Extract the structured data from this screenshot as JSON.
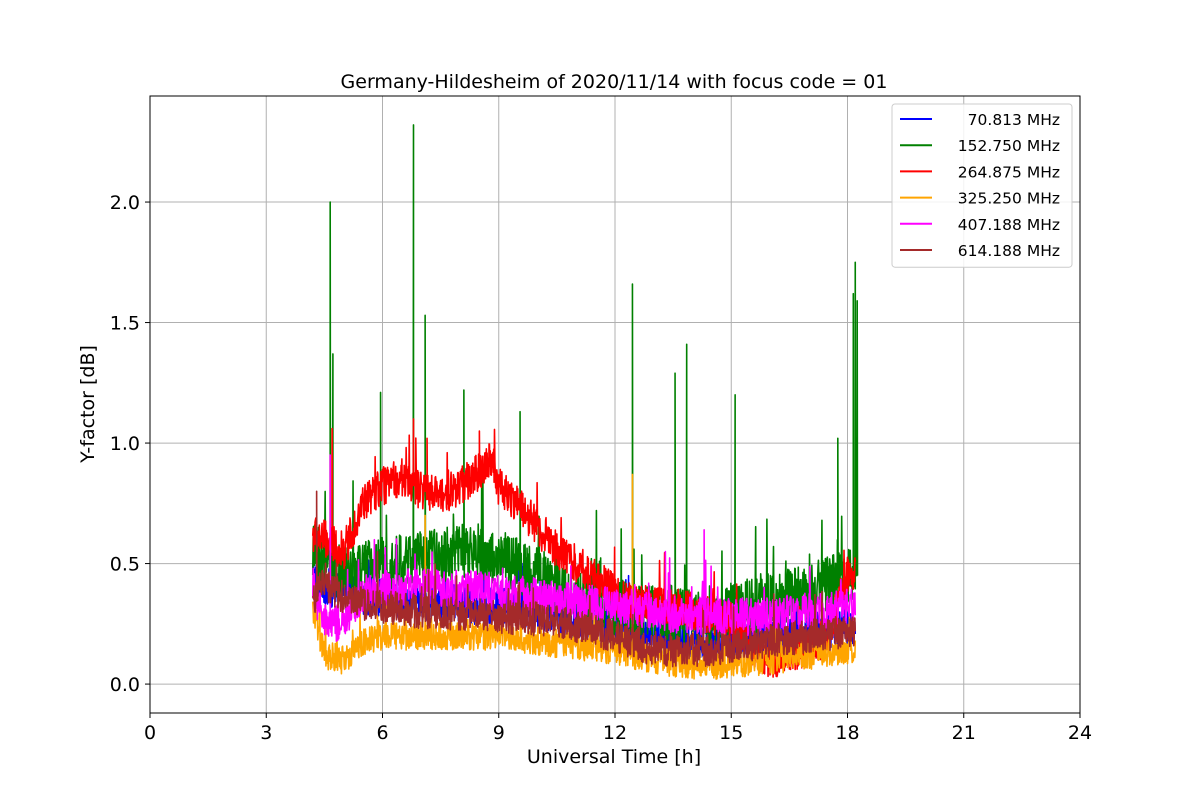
{
  "chart_data": {
    "type": "line",
    "title": "Germany-Hildesheim of 2020/11/14 with focus code = 01",
    "xlabel": "Universal Time [h]",
    "ylabel": "Y-factor [dB]",
    "xlim": [
      0,
      24
    ],
    "ylim": [
      -0.12,
      2.44
    ],
    "xticks": [
      0,
      3,
      6,
      9,
      12,
      15,
      18,
      21,
      24
    ],
    "xtick_labels": [
      "0",
      "3",
      "6",
      "9",
      "12",
      "15",
      "18",
      "21",
      "24"
    ],
    "yticks": [
      0.0,
      0.5,
      1.0,
      1.5,
      2.0
    ],
    "ytick_labels": [
      "0.0",
      "0.5",
      "1.0",
      "1.5",
      "2.0"
    ],
    "grid": true,
    "legend_position": "top-right",
    "series": [
      {
        "name": "70.813 MHz",
        "color": "#0000ff",
        "x": [
          4.2,
          4.6,
          5.0,
          6.0,
          7.0,
          8.0,
          9.0,
          10.0,
          11.0,
          12.0,
          13.0,
          14.0,
          15.0,
          16.0,
          17.0,
          18.2
        ],
        "y": [
          0.45,
          0.4,
          0.38,
          0.36,
          0.34,
          0.33,
          0.32,
          0.3,
          0.27,
          0.24,
          0.2,
          0.18,
          0.18,
          0.2,
          0.22,
          0.24
        ],
        "noise": 0.08,
        "spikes": [
          [
            9.6,
            0.5
          ],
          [
            12.35,
            0.45
          ]
        ]
      },
      {
        "name": "152.750 MHz",
        "color": "#008000",
        "x": [
          4.2,
          4.6,
          5.0,
          6.0,
          7.0,
          8.0,
          9.0,
          10.0,
          11.0,
          12.0,
          13.0,
          14.0,
          15.0,
          16.0,
          17.0,
          18.2
        ],
        "y": [
          0.55,
          0.5,
          0.45,
          0.5,
          0.52,
          0.55,
          0.52,
          0.45,
          0.35,
          0.32,
          0.3,
          0.28,
          0.3,
          0.35,
          0.38,
          0.45
        ],
        "noise": 0.12,
        "spikes": [
          [
            4.65,
            2.0
          ],
          [
            4.72,
            1.37
          ],
          [
            5.95,
            1.21
          ],
          [
            6.8,
            2.32
          ],
          [
            7.1,
            1.53
          ],
          [
            8.1,
            1.22
          ],
          [
            9.55,
            1.13
          ],
          [
            12.45,
            1.66
          ],
          [
            13.55,
            1.29
          ],
          [
            13.85,
            1.41
          ],
          [
            15.1,
            1.2
          ],
          [
            17.75,
            1.02
          ],
          [
            18.15,
            1.62
          ],
          [
            18.2,
            1.75
          ],
          [
            18.25,
            1.59
          ]
        ]
      },
      {
        "name": "264.875 MHz",
        "color": "#ff0000",
        "x": [
          4.2,
          4.5,
          5.0,
          5.5,
          6.0,
          6.5,
          7.0,
          7.5,
          8.0,
          8.5,
          8.8,
          9.0,
          9.5,
          10.0,
          10.5,
          11.0,
          11.5,
          12.0,
          12.5,
          13.0,
          13.5,
          14.0,
          14.5,
          15.0,
          15.5,
          16.0,
          16.5,
          17.0,
          17.5,
          18.0,
          18.2
        ],
        "y": [
          0.62,
          0.6,
          0.55,
          0.75,
          0.82,
          0.86,
          0.8,
          0.78,
          0.82,
          0.88,
          0.95,
          0.82,
          0.75,
          0.65,
          0.56,
          0.5,
          0.45,
          0.38,
          0.33,
          0.33,
          0.32,
          0.3,
          0.28,
          0.26,
          0.14,
          0.1,
          0.13,
          0.15,
          0.2,
          0.45,
          0.48
        ],
        "noise": 0.08,
        "spikes": [
          [
            4.7,
            1.06
          ],
          [
            6.8,
            1.1
          ],
          [
            7.15,
            1.02
          ],
          [
            8.5,
            1.05
          ]
        ]
      },
      {
        "name": "325.250 MHz",
        "color": "#ffa500",
        "x": [
          4.2,
          4.5,
          5.0,
          5.5,
          6.0,
          7.0,
          8.0,
          9.0,
          10.0,
          11.0,
          12.0,
          13.0,
          14.0,
          15.0,
          16.0,
          17.0,
          18.2
        ],
        "y": [
          0.3,
          0.12,
          0.1,
          0.18,
          0.2,
          0.2,
          0.2,
          0.2,
          0.18,
          0.16,
          0.14,
          0.1,
          0.08,
          0.08,
          0.1,
          0.12,
          0.15
        ],
        "noise": 0.06,
        "spikes": [
          [
            12.45,
            0.87
          ],
          [
            7.1,
            0.7
          ]
        ]
      },
      {
        "name": "407.188 MHz",
        "color": "#ff00ff",
        "x": [
          4.2,
          4.5,
          5.0,
          5.5,
          6.0,
          7.0,
          8.0,
          9.0,
          10.0,
          11.0,
          12.0,
          13.0,
          14.0,
          15.0,
          16.0,
          17.0,
          18.2
        ],
        "y": [
          0.4,
          0.25,
          0.25,
          0.38,
          0.4,
          0.4,
          0.4,
          0.38,
          0.36,
          0.34,
          0.32,
          0.3,
          0.28,
          0.28,
          0.28,
          0.3,
          0.32
        ],
        "noise": 0.08,
        "spikes": [
          [
            4.65,
            0.95
          ],
          [
            14.3,
            0.64
          ],
          [
            13.3,
            0.55
          ]
        ]
      },
      {
        "name": "614.188 MHz",
        "color": "#a52a2a",
        "x": [
          4.2,
          4.5,
          5.0,
          5.5,
          6.0,
          7.0,
          8.0,
          9.0,
          10.0,
          11.0,
          12.0,
          13.0,
          14.0,
          15.0,
          16.0,
          17.0,
          18.2
        ],
        "y": [
          0.35,
          0.42,
          0.36,
          0.33,
          0.32,
          0.3,
          0.29,
          0.28,
          0.27,
          0.24,
          0.2,
          0.14,
          0.14,
          0.15,
          0.18,
          0.2,
          0.22
        ],
        "noise": 0.07,
        "spikes": [
          [
            4.3,
            0.8
          ]
        ]
      }
    ]
  }
}
